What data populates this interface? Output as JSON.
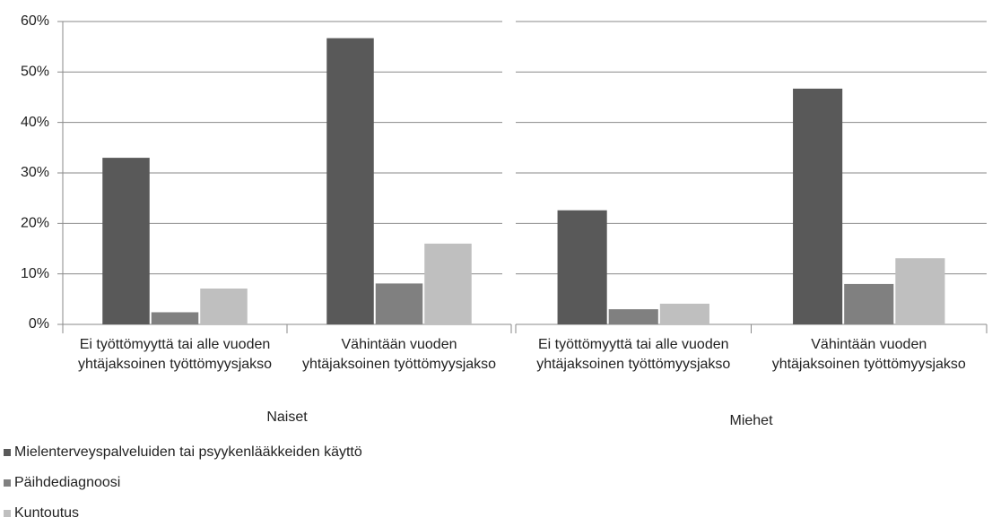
{
  "chart_data": {
    "type": "bar",
    "categories": [
      "Ei työttömyyttä tai alle vuoden yhtäjaksoinen työttömyysjakso",
      "Vähintään vuoden yhtäjaksoinen työttömyysjakso",
      "Ei työttömyyttä tai alle vuoden yhtäjaksoinen työttömyysjakso",
      "Vähintään vuoden yhtäjaksoinen työttömyysjakso"
    ],
    "groups": [
      "Naiset",
      "Miehet"
    ],
    "series": [
      {
        "name": "Mielenterveyspalveluiden tai psyykenlääkkeiden käyttö",
        "color": "#595959",
        "values": [
          33,
          56.7,
          22.6,
          46.7
        ]
      },
      {
        "name": "Päihdediagnoosi",
        "color": "#808080",
        "values": [
          2.4,
          8.1,
          3.0,
          8.0
        ]
      },
      {
        "name": "Kuntoutus",
        "color": "#bfbfbf",
        "values": [
          7.1,
          16,
          4.1,
          13.1
        ]
      }
    ],
    "ylim": [
      0,
      60
    ],
    "yticks": [
      {
        "value": 0,
        "label": "0%"
      },
      {
        "value": 10,
        "label": "10%"
      },
      {
        "value": 20,
        "label": "20%"
      },
      {
        "value": 30,
        "label": "30%"
      },
      {
        "value": 40,
        "label": "40%"
      },
      {
        "value": 50,
        "label": "50%"
      },
      {
        "value": 60,
        "label": "60%"
      }
    ],
    "grid": true
  }
}
